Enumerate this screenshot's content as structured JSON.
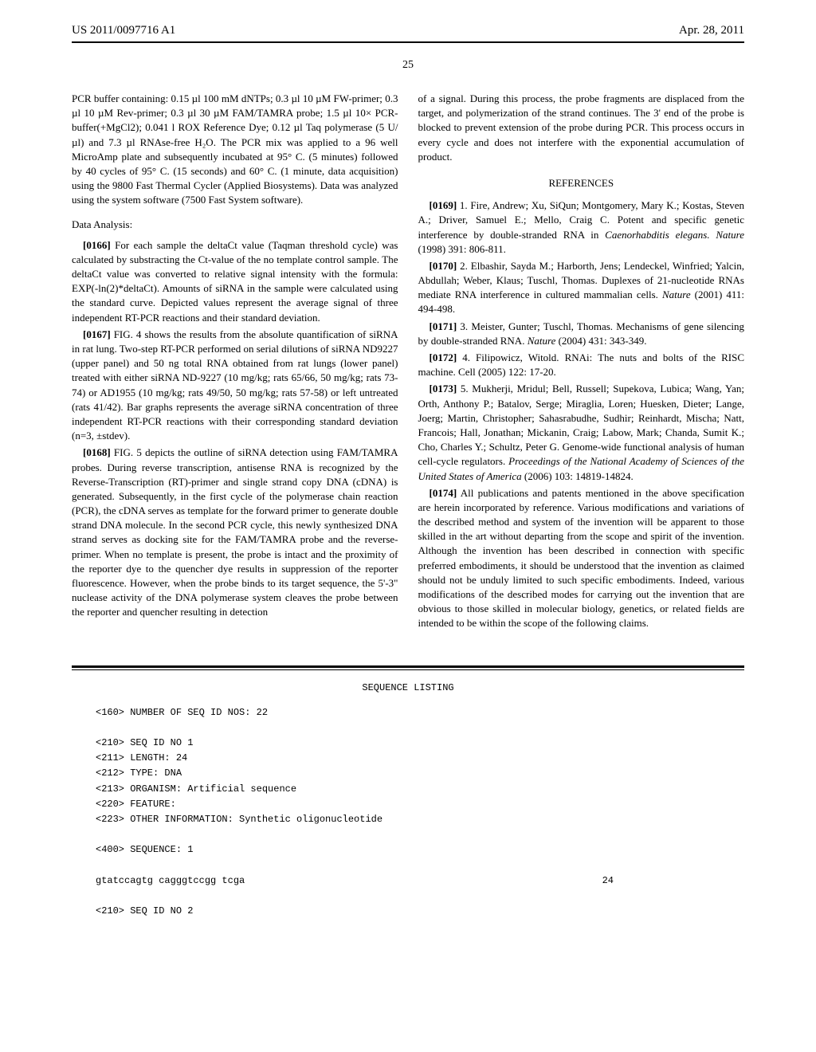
{
  "header": {
    "pub_number": "US 2011/0097716 A1",
    "pub_date": "Apr. 28, 2011"
  },
  "page_number": "25",
  "left_column": {
    "intro_text": "PCR buffer containing: 0.15 µl 100 mM dNTPs; 0.3 µl 10 µM FW-primer; 0.3 µl 10 µM Rev-primer; 0.3 µl 30 µM FAM/TAMRA probe; 1.5 µl 10× PCR-buffer(+MgCl2); 0.041 l ROX Reference Dye; 0.12 µl Taq polymerase (5 U/µl) and 7.3 µl RNAse-free H₂O. The PCR mix was applied to a 96 well MicroAmp plate and subsequently incubated at 95° C. (5 minutes) followed by 40 cycles of 95° C. (15 seconds) and 60° C. (1 minute, data acquisition) using the 9800 Fast Thermal Cycler (Applied Biosystems). Data was analyzed using the system software (7500 Fast System software).",
    "data_analysis_title": "Data Analysis:",
    "para_0166": "[0166]",
    "para_0166_text": " For each sample the deltaCt value (Taqman threshold cycle) was calculated by substracting the Ct-value of the no template control sample. The deltaCt value was converted to relative signal intensity with the formula: EXP(-ln(2)*deltaCt). Amounts of siRNA in the sample were calculated using the standard curve. Depicted values represent the average signal of three independent RT-PCR reactions and their standard deviation.",
    "para_0167": "[0167]",
    "para_0167_text": " FIG. 4 shows the results from the absolute quantification of siRNA in rat lung. Two-step RT-PCR performed on serial dilutions of siRNA ND9227 (upper panel) and 50 ng total RNA obtained from rat lungs (lower panel) treated with either siRNA ND-9227 (10 mg/kg; rats 65/66, 50 mg/kg; rats 73-74) or AD1955 (10 mg/kg; rats 49/50, 50 mg/kg; rats 57-58) or left untreated (rats 41/42). Bar graphs represents the average siRNA concentration of three independent RT-PCR reactions with their corresponding standard deviation (n=3, ±stdev).",
    "para_0168": "[0168]",
    "para_0168_text": " FIG. 5 depicts the outline of siRNA detection using FAM/TAMRA probes. During reverse transcription, antisense RNA is recognized by the Reverse-Transcription (RT)-primer and single strand copy DNA (cDNA) is generated. Subsequently, in the first cycle of the polymerase chain reaction (PCR), the cDNA serves as template for the forward primer to generate double strand DNA molecule. In the second PCR cycle, this newly synthesized DNA strand serves as docking site for the FAM/TAMRA probe and the reverse-primer. When no template is present, the probe is intact and the proximity of the reporter dye to the quencher dye results in suppression of the reporter fluorescence. However, when the probe binds to its target sequence, the 5'-3\" nuclease activity of the DNA polymerase system cleaves the probe between the reporter and quencher resulting in detection"
  },
  "right_column": {
    "cont_text": "of a signal. During this process, the probe fragments are displaced from the target, and polymerization of the strand continues. The 3' end of the probe is blocked to prevent extension of the probe during PCR. This process occurs in every cycle and does not interfere with the exponential accumulation of product.",
    "references_title": "REFERENCES",
    "ref_0169": "[0169]",
    "ref_0169_text": " 1. Fire, Andrew; Xu, SiQun; Montgomery, Mary K.; Kostas, Steven A.; Driver, Samuel E.; Mello, Craig C. Potent and specific genetic interference by double-stranded RNA in ",
    "ref_0169_italic": "Caenorhabditis elegans. Nature",
    "ref_0169_end": " (1998) 391: 806-811.",
    "ref_0170": "[0170]",
    "ref_0170_text": " 2. Elbashir, Sayda M.; Harborth, Jens; Lendeckel, Winfried; Yalcin, Abdullah; Weber, Klaus; Tuschl, Thomas. Duplexes of 21-nucleotide RNAs mediate RNA interference in cultured mammalian cells. ",
    "ref_0170_italic": "Nature",
    "ref_0170_end": " (2001) 411: 494-498.",
    "ref_0171": "[0171]",
    "ref_0171_text": " 3. Meister, Gunter; Tuschl, Thomas. Mechanisms of gene silencing by double-stranded RNA. ",
    "ref_0171_italic": "Nature",
    "ref_0171_end": " (2004) 431: 343-349.",
    "ref_0172": "[0172]",
    "ref_0172_text": " 4. Filipowicz, Witold. RNAi: The nuts and bolts of the RISC machine. Cell (2005) 122: 17-20.",
    "ref_0173": "[0173]",
    "ref_0173_text": " 5. Mukherji, Mridul; Bell, Russell; Supekova, Lubica; Wang, Yan; Orth, Anthony P.; Batalov, Serge; Miraglia, Loren; Huesken, Dieter; Lange, Joerg; Martin, Christopher; Sahasrabudhe, Sudhir; Reinhardt, Mischa; Natt, Francois; Hall, Jonathan; Mickanin, Craig; Labow, Mark; Chanda, Sumit K.; Cho, Charles Y.; Schultz, Peter G. Genome-wide functional analysis of human cell-cycle regulators. ",
    "ref_0173_italic": "Proceedings of the National Academy of Sciences of the United States of America",
    "ref_0173_end": " (2006) 103: 14819-14824.",
    "para_0174": "[0174]",
    "para_0174_text": " All publications and patents mentioned in the above specification are herein incorporated by reference. Various modifications and variations of the described method and system of the invention will be apparent to those skilled in the art without departing from the scope and spirit of the invention. Although the invention has been described in connection with specific preferred embodiments, it should be understood that the invention as claimed should not be unduly limited to such specific embodiments. Indeed, various modifications of the described modes for carrying out the invention that are obvious to those skilled in molecular biology, genetics, or related fields are intended to be within the scope of the following claims."
  },
  "sequence": {
    "title": "SEQUENCE LISTING",
    "line1": "<160> NUMBER OF SEQ ID NOS: 22",
    "line2": "<210> SEQ ID NO 1",
    "line3": "<211> LENGTH: 24",
    "line4": "<212> TYPE: DNA",
    "line5": "<213> ORGANISM: Artificial sequence",
    "line6": "<220> FEATURE:",
    "line7": "<223> OTHER INFORMATION: Synthetic oligonucleotide",
    "line8": "<400> SEQUENCE: 1",
    "seq": "gtatccagtg cagggtccgg tcga",
    "seq_num": "24",
    "line9": "<210> SEQ ID NO 2"
  }
}
